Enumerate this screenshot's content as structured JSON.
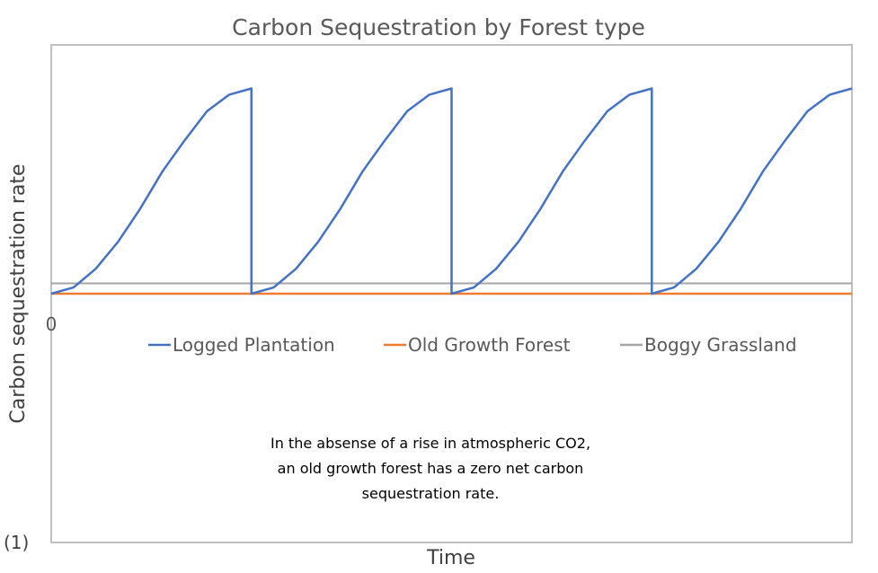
{
  "chart_data": {
    "type": "line",
    "title": "Carbon Sequestration by Forest type",
    "xlabel": "Time",
    "ylabel": "Carbon sequestration rate",
    "y_tick_labels": [
      "0"
    ],
    "xlim": [
      0,
      36
    ],
    "ylim": [
      -12,
      12
    ],
    "grid": false,
    "legend_position": "top-center, inside plot below zero line",
    "series": [
      {
        "name": "Logged Plantation",
        "color": "#4472C4",
        "x": [
          0,
          1,
          2,
          3,
          4,
          5,
          6,
          7,
          8,
          9,
          9,
          10,
          11,
          12,
          13,
          14,
          15,
          16,
          17,
          18,
          18,
          19,
          20,
          21,
          22,
          23,
          24,
          25,
          26,
          27,
          27,
          28,
          29,
          30,
          31,
          32,
          33,
          34,
          35,
          36
        ],
        "y": [
          0,
          0.3,
          1.2,
          2.5,
          4.1,
          5.9,
          7.4,
          8.8,
          9.6,
          9.9,
          0,
          0.3,
          1.2,
          2.5,
          4.1,
          5.9,
          7.4,
          8.8,
          9.6,
          9.9,
          0,
          0.3,
          1.2,
          2.5,
          4.1,
          5.9,
          7.4,
          8.8,
          9.6,
          9.9,
          0,
          0.3,
          1.2,
          2.5,
          4.1,
          5.9,
          7.4,
          8.8,
          9.6,
          9.9
        ]
      },
      {
        "name": "Old Growth Forest",
        "color": "#ED7D31",
        "x": [
          0,
          36
        ],
        "y": [
          0,
          0
        ]
      },
      {
        "name": "Boggy Grassland",
        "color": "#A5A5A5",
        "x": [
          0,
          36
        ],
        "y": [
          0.5,
          0.5
        ]
      }
    ],
    "annotation": [
      "In the absense of a rise in atmospheric CO2,",
      "an old growth forest has a zero net carbon",
      "sequestration rate."
    ],
    "figure_label": "(1)"
  }
}
